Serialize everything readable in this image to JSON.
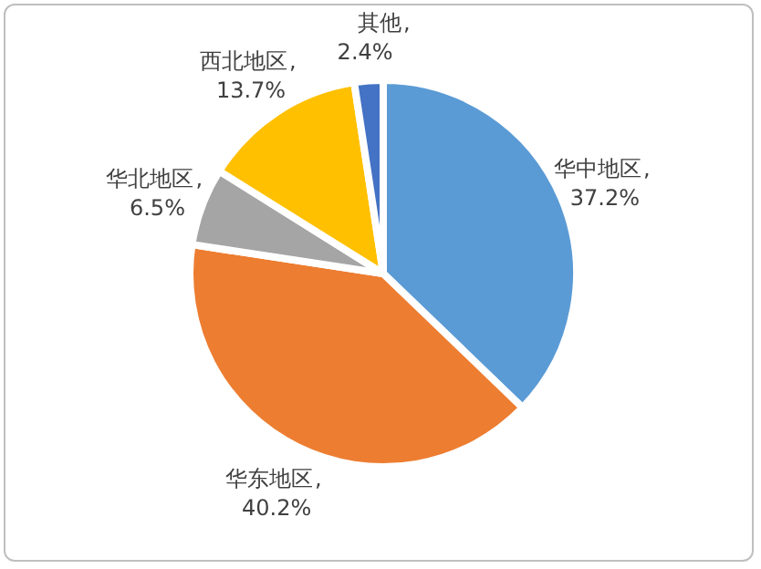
{
  "chart_data": {
    "type": "pie",
    "categories": [
      "华中地区",
      "华东地区",
      "华北地区",
      "西北地区",
      "其他"
    ],
    "values": [
      37.2,
      40.2,
      6.5,
      13.7,
      2.4
    ],
    "colors": [
      "#5b9bd5",
      "#ed7d31",
      "#a5a5a5",
      "#ffc000",
      "#4472c4"
    ],
    "value_labels": [
      ", 37.2%",
      ", 40.2%",
      ", 6.5%",
      ", 13.7%",
      ", 2.4%"
    ]
  }
}
